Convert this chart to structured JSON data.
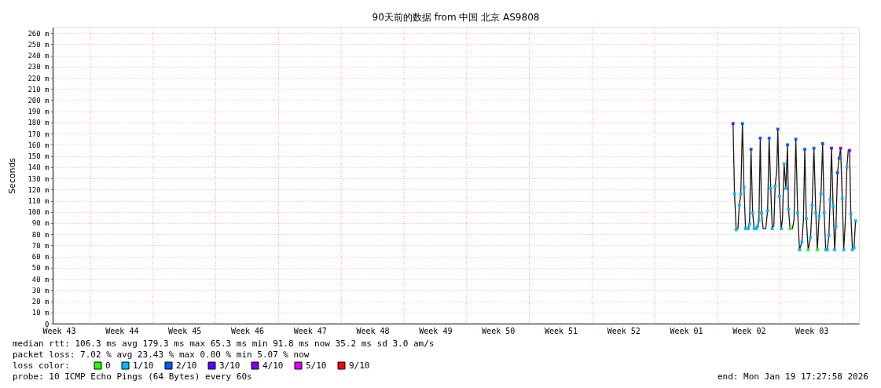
{
  "chart_data": {
    "type": "line",
    "title": "90天前的数据 from  中国 北京 AS9808",
    "ylabel": "Seconds",
    "legend_title": "loss color:",
    "legend": "bottom",
    "grid": "y",
    "xlim": [
      "2025-10-21T18:00",
      "2026-01-19T18:00"
    ],
    "xticks": [
      {
        "value": "2025-10-22T11:00",
        "label": "Week 43"
      },
      {
        "value": "2025-10-29T11:00",
        "label": "Week 44"
      },
      {
        "value": "2025-11-05T11:00",
        "label": "Week 45"
      },
      {
        "value": "2025-11-12T11:00",
        "label": "Week 46"
      },
      {
        "value": "2025-11-19T11:00",
        "label": "Week 47"
      },
      {
        "value": "2025-11-26T11:00",
        "label": "Week 48"
      },
      {
        "value": "2025-12-03T11:00",
        "label": "Week 49"
      },
      {
        "value": "2025-12-10T11:00",
        "label": "Week 50"
      },
      {
        "value": "2025-12-17T11:00",
        "label": "Week 51"
      },
      {
        "value": "2025-12-24T11:00",
        "label": "Week 52"
      },
      {
        "value": "2025-12-31T11:00",
        "label": "Week 01"
      },
      {
        "value": "2026-01-07T11:00",
        "label": "Week 02"
      },
      {
        "value": "2026-01-14T11:00",
        "label": "Week 03"
      }
    ],
    "ylim": [
      0,
      265
    ],
    "yticks": [
      0,
      {
        "value": 10,
        "label": "10 m"
      },
      {
        "value": 20,
        "label": "20 m"
      },
      {
        "value": 30,
        "label": "30 m"
      },
      {
        "value": 40,
        "label": "40 m"
      },
      {
        "value": 50,
        "label": "50 m"
      },
      {
        "value": 60,
        "label": "60 m"
      },
      {
        "value": 70,
        "label": "70 m"
      },
      {
        "value": 80,
        "label": "80 m"
      },
      {
        "value": 90,
        "label": "90 m"
      },
      {
        "value": 100,
        "label": "100 m"
      },
      {
        "value": 110,
        "label": "110 m"
      },
      {
        "value": 120,
        "label": "120 m"
      },
      {
        "value": 130,
        "label": "130 m"
      },
      {
        "value": 140,
        "label": "140 m"
      },
      {
        "value": 150,
        "label": "150 m"
      },
      {
        "value": 160,
        "label": "160 m"
      },
      {
        "value": 170,
        "label": "170 m"
      },
      {
        "value": 180,
        "label": "180 m"
      },
      {
        "value": 190,
        "label": "190 m"
      },
      {
        "value": 200,
        "label": "200 m"
      },
      {
        "value": 210,
        "label": "210 m"
      },
      {
        "value": 220,
        "label": "220 m"
      },
      {
        "value": 230,
        "label": "230 m"
      },
      {
        "value": 240,
        "label": "240 m"
      },
      {
        "value": 250,
        "label": "250 m"
      },
      {
        "value": 260,
        "label": "260 m"
      }
    ],
    "ref_lines": [
      {
        "axis": "x",
        "value": "2025-10-25T23:00",
        "color": "#ff9f9f",
        "line_style": "dotted"
      },
      {
        "axis": "x",
        "value": "2025-11-01T23:00",
        "color": "#ff9f9f",
        "line_style": "dotted"
      },
      {
        "axis": "x",
        "value": "2025-11-08T23:00",
        "color": "#ff9f9f",
        "line_style": "dotted"
      },
      {
        "axis": "x",
        "value": "2025-11-15T23:00",
        "color": "#ff9f9f",
        "line_style": "dotted"
      },
      {
        "axis": "x",
        "value": "2025-11-22T23:00",
        "color": "#ff9f9f",
        "line_style": "dotted"
      },
      {
        "axis": "x",
        "value": "2025-11-29T23:00",
        "color": "#ff9f9f",
        "line_style": "dotted"
      },
      {
        "axis": "x",
        "value": "2025-12-06T23:00",
        "color": "#ff9f9f",
        "line_style": "dotted"
      },
      {
        "axis": "x",
        "value": "2025-12-13T23:00",
        "color": "#ff9f9f",
        "line_style": "dotted"
      },
      {
        "axis": "x",
        "value": "2025-12-20T23:00",
        "color": "#ff9f9f",
        "line_style": "dotted"
      },
      {
        "axis": "x",
        "value": "2025-12-27T23:00",
        "color": "#ff9f9f",
        "line_style": "dotted"
      },
      {
        "axis": "x",
        "value": "2026-01-03T23:00",
        "color": "#ff9f9f",
        "line_style": "dotted"
      },
      {
        "axis": "x",
        "value": "2026-01-10T23:00",
        "color": "#ff9f9f",
        "line_style": "dotted"
      },
      {
        "axis": "x",
        "value": "2026-01-17T23:00",
        "color": "#ff9f9f",
        "line_style": "dotted"
      }
    ],
    "series": [
      {
        "color": "#1a1a1a",
        "line_style": "solid",
        "x": [
          "2026-01-05T16:34",
          "2026-01-05T20:38",
          "2026-01-06T00:58",
          "2026-01-06T05:46",
          "2026-01-06T09:22",
          "2026-01-06T13:26",
          "2026-01-06T17:46",
          "2026-01-06T21:50",
          "2026-01-07T02:10",
          "2026-01-07T09:07",
          "2026-01-07T12:43",
          "2026-01-07T16:48",
          "2026-01-07T21:07",
          "2026-01-08T01:12",
          "2026-01-08T06:58",
          "2026-01-08T10:19",
          "2026-01-08T13:55",
          "2026-01-08T17:31",
          "2026-01-08T20:53",
          "2026-01-09T01:12",
          "2026-01-09T08:10",
          "2026-01-09T13:12",
          "2026-01-09T17:17",
          "2026-01-09T21:36",
          "2026-01-10T01:41",
          "2026-01-10T06:00",
          "2026-01-10T09:22",
          "2026-01-10T13:41",
          "2026-01-10T16:34",
          "2026-01-10T20:38",
          "2026-01-11T01:41",
          "2026-01-11T05:02",
          "2026-01-11T09:22",
          "2026-01-11T14:10",
          "2026-01-11T18:29",
          "2026-01-11T21:07",
          "2026-01-12T01:26",
          "2026-01-12T07:41",
          "2026-01-12T12:00",
          "2026-01-12T16:48",
          "2026-01-12T21:50",
          "2026-01-13T02:38",
          "2026-01-13T09:07",
          "2026-01-13T13:12",
          "2026-01-13T16:48",
          "2026-01-13T20:53",
          "2026-01-14T01:55",
          "2026-01-14T08:10",
          "2026-01-14T12:29",
          "2026-01-14T17:17",
          "2026-01-14T22:19",
          "2026-01-15T02:24",
          "2026-01-15T07:12",
          "2026-01-15T12:14",
          "2026-01-15T16:34",
          "2026-01-15T20:38",
          "2026-01-16T00:58",
          "2026-01-16T05:02",
          "2026-01-16T09:22",
          "2026-01-16T12:43",
          "2026-01-16T16:19",
          "2026-01-16T20:38",
          "2026-01-17T00:43",
          "2026-01-17T04:19",
          "2026-01-17T08:24",
          "2026-01-17T12:43",
          "2026-01-17T16:48",
          "2026-01-17T21:07",
          "2026-01-18T01:12",
          "2026-01-18T05:31",
          "2026-01-18T09:36",
          "2026-01-18T13:12",
          "2026-01-18T16:48",
          "2026-01-18T20:10",
          "2026-01-19T00:29",
          "2026-01-19T04:34",
          "2026-01-19T08:53"
        ],
        "values": [
          179,
          116,
          84,
          85,
          106,
          116,
          179,
          122,
          85,
          85,
          89,
          156,
          99,
          85,
          85,
          87,
          92,
          166,
          99,
          85,
          85,
          101,
          166,
          121,
          85,
          88,
          123,
          137,
          174,
          114,
          85,
          94,
          143,
          121,
          160,
          102,
          85,
          85,
          93,
          165,
          99,
          66,
          73,
          93,
          156,
          94,
          66,
          77,
          106,
          157,
          99,
          66,
          96,
          116,
          161,
          99,
          66,
          66,
          79,
          111,
          157,
          105,
          66,
          87,
          135,
          148,
          157,
          112,
          66,
          93,
          140,
          155,
          155,
          98,
          66,
          68,
          92
        ]
      },
      {
        "type": "scatter",
        "name": "0",
        "color": "#26ff00",
        "marker": "square",
        "x": [
          "2026-01-12T01:26",
          "2026-01-14T01:55",
          "2026-01-15T02:24"
        ],
        "values": [
          85,
          66,
          66
        ]
      },
      {
        "type": "scatter",
        "name": "1/10",
        "color": "#00b8ff",
        "marker": "square",
        "x": [
          "2026-01-05T20:38",
          "2026-01-06T00:58",
          "2026-01-06T09:22",
          "2026-01-06T13:26",
          "2026-01-06T21:50",
          "2026-01-07T02:10",
          "2026-01-07T09:07",
          "2026-01-07T12:43",
          "2026-01-07T21:07",
          "2026-01-08T01:12",
          "2026-01-08T06:58",
          "2026-01-08T10:19",
          "2026-01-08T13:55",
          "2026-01-08T20:53",
          "2026-01-09T13:12",
          "2026-01-09T21:36",
          "2026-01-10T01:41",
          "2026-01-10T09:22",
          "2026-01-10T20:38",
          "2026-01-11T01:41",
          "2026-01-11T09:22",
          "2026-01-11T14:10",
          "2026-01-11T21:07",
          "2026-01-12T21:50",
          "2026-01-13T02:38",
          "2026-01-13T09:07",
          "2026-01-13T20:53",
          "2026-01-14T08:10",
          "2026-01-14T12:29",
          "2026-01-14T22:19",
          "2026-01-15T07:12",
          "2026-01-15T12:14",
          "2026-01-15T20:38",
          "2026-01-16T00:58",
          "2026-01-16T05:02",
          "2026-01-16T09:22",
          "2026-01-16T12:43",
          "2026-01-16T20:38",
          "2026-01-17T00:43",
          "2026-01-17T04:19",
          "2026-01-17T21:07",
          "2026-01-18T01:12",
          "2026-01-18T09:36",
          "2026-01-18T20:10",
          "2026-01-19T00:29",
          "2026-01-19T04:34",
          "2026-01-19T08:53"
        ],
        "values": [
          116,
          84,
          106,
          116,
          122,
          85,
          85,
          89,
          99,
          85,
          85,
          87,
          92,
          99,
          101,
          121,
          85,
          123,
          114,
          85,
          143,
          121,
          102,
          99,
          66,
          73,
          94,
          77,
          106,
          99,
          96,
          116,
          99,
          66,
          66,
          79,
          111,
          105,
          66,
          87,
          112,
          66,
          140,
          98,
          66,
          68,
          92
        ]
      },
      {
        "type": "scatter",
        "name": "2/10",
        "color": "#0059ff",
        "marker": "square",
        "x": [
          "2026-01-06T17:46",
          "2026-01-07T16:48",
          "2026-01-08T17:31",
          "2026-01-09T17:17",
          "2026-01-10T16:34",
          "2026-01-11T18:29",
          "2026-01-12T16:48",
          "2026-01-13T16:48",
          "2026-01-14T17:17",
          "2026-01-15T16:34",
          "2026-01-17T08:24",
          "2026-01-17T12:43"
        ],
        "values": [
          179,
          156,
          166,
          166,
          174,
          160,
          165,
          156,
          157,
          161,
          135,
          148
        ]
      },
      {
        "type": "scatter",
        "name": "3/10",
        "color": "#5e00ff",
        "marker": "square",
        "x": [
          "2026-01-05T16:34"
        ],
        "values": [
          179
        ]
      },
      {
        "type": "scatter",
        "name": "4/10",
        "color": "#7e00ff",
        "marker": "square",
        "x": [
          "2026-01-16T16:19",
          "2026-01-17T16:48",
          "2026-01-18T16:48"
        ],
        "values": [
          157,
          157,
          155
        ]
      },
      {
        "type": "scatter",
        "name": "5/10",
        "color": "#dd00ff",
        "marker": "square"
      },
      {
        "type": "scatter",
        "name": "9/10",
        "color": "#ff0000",
        "marker": "square"
      }
    ],
    "annotations": [
      "median rtt:  106.3 ms avg  179.3 ms max  65.3 ms min  91.8 ms now  35.2 ms sd  3.0   am/s",
      "packet loss: 7.02 % avg  23.43 % max  0.00 % min  5.07 % now",
      "probe:       10 ICMP Echo Pings (64 Bytes) every 60s",
      "end: Mon Jan 19 17:27:58 2026"
    ]
  }
}
